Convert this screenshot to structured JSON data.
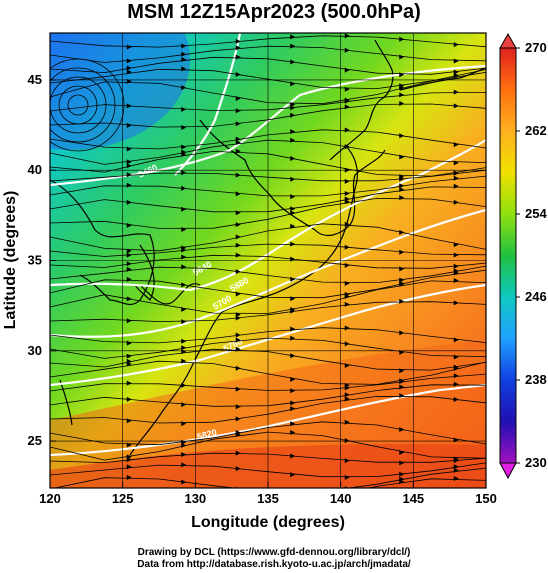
{
  "title": "MSM 12Z15Apr2023 (500.0hPa)",
  "map": {
    "lon_range": [
      120,
      150
    ],
    "lat_range": [
      22.4,
      47.6
    ],
    "x_ticks": [
      "120",
      "125",
      "130",
      "135",
      "140",
      "145",
      "150"
    ],
    "y_ticks": [
      "25",
      "30",
      "35",
      "40",
      "45"
    ],
    "xlabel": "Longitude (degrees)",
    "ylabel": "Latitude  (degrees)",
    "contour_labels": [
      "5460",
      "5640",
      "5700",
      "5760",
      "5820",
      "5880"
    ]
  },
  "colorbar": {
    "min": 230,
    "max": 270,
    "ticks": [
      "270",
      "262",
      "254",
      "246",
      "238",
      "230"
    ],
    "colors": [
      "#e02020",
      "#ff7010",
      "#ffa020",
      "#f0e000",
      "#a0e010",
      "#20c040",
      "#10c8a0",
      "#20a0ff",
      "#1040e0",
      "#2010b0",
      "#a010c0",
      "#e020e0"
    ]
  },
  "credits": {
    "line1": "Drawing by DCL (https://www.gfd-dennou.org/library/dcl/)",
    "line2": "Data from http://database.rish.kyoto-u.ac.jp/arch/jmadata/"
  }
}
